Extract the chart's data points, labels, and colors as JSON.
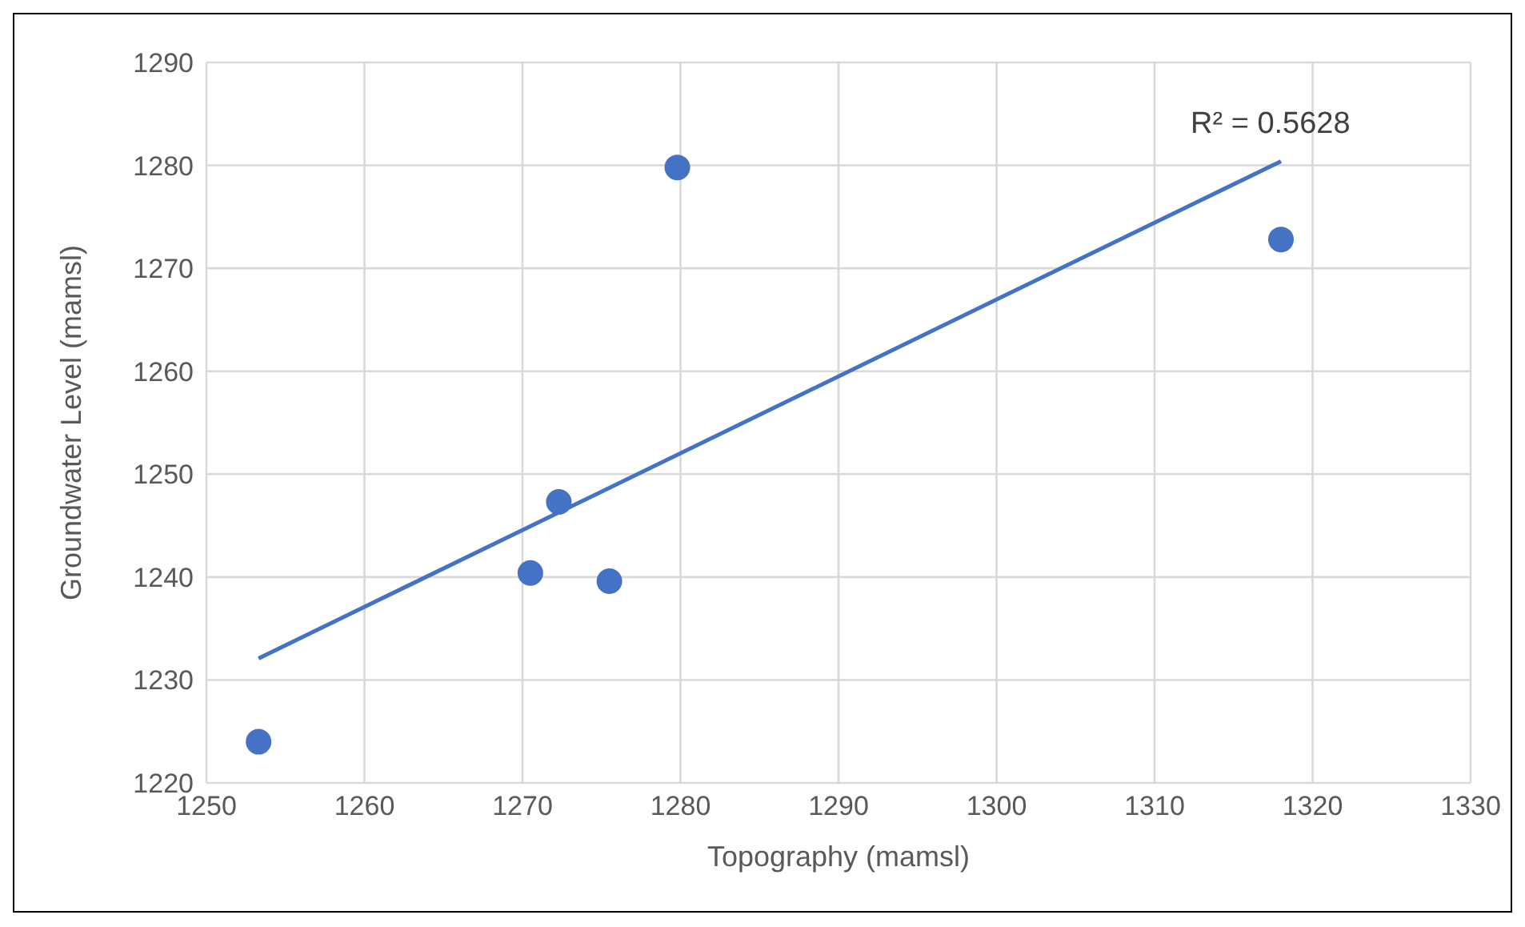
{
  "chart_data": {
    "type": "scatter",
    "xlabel": "Topography (mamsl)",
    "ylabel": "Groundwater Level (mamsl)",
    "xlim": [
      1250,
      1330
    ],
    "xticks": [
      1250,
      1260,
      1270,
      1280,
      1290,
      1300,
      1310,
      1320,
      1330
    ],
    "ylim": [
      1220,
      1290
    ],
    "yticks": [
      1220,
      1230,
      1240,
      1250,
      1260,
      1270,
      1280,
      1290
    ],
    "grid": true,
    "marker": "circle",
    "series": [
      {
        "color": "#4472c4",
        "x": [
          1253.3,
          1270.5,
          1272.3,
          1275.5,
          1279.8,
          1318.0
        ],
        "values": [
          1224.0,
          1240.4,
          1247.3,
          1239.6,
          1279.8,
          1272.8
        ]
      },
      {
        "type": "line",
        "color": "#4472c4",
        "marker": "none",
        "x": [
          1253.3,
          1318.0
        ],
        "values": [
          1232.1,
          1280.4
        ]
      }
    ],
    "annotations": [
      "R² = 0.5628"
    ]
  }
}
